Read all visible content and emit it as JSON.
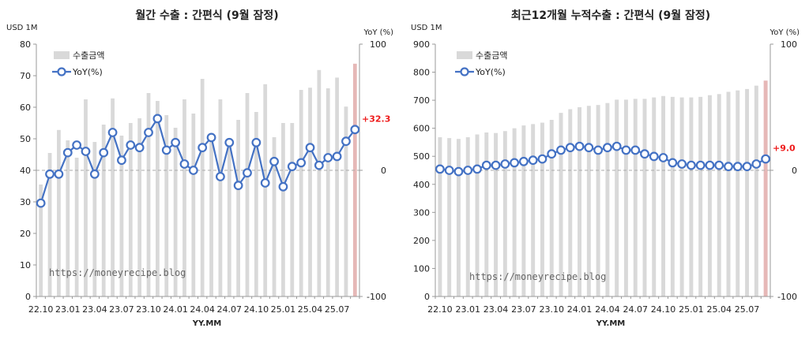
{
  "chart_data": [
    {
      "type": "bar+line",
      "title": "월간 수출 : 간편식 (9월 잠정)",
      "left_unit": "USD 1M",
      "right_unit": "YoY (%)",
      "xlabel": "YY.MM",
      "ylim": [
        0,
        80
      ],
      "yticks": [
        0,
        10,
        20,
        30,
        40,
        50,
        60,
        70,
        80
      ],
      "y2lim": [
        -100,
        100
      ],
      "y2ticks": [
        -100,
        0,
        100
      ],
      "xtick_labels": [
        "22.10",
        "23.01",
        "23.04",
        "23.07",
        "23.10",
        "24.01",
        "24.04",
        "24.07",
        "24.10",
        "25.01",
        "25.04",
        "25.07"
      ],
      "xtick_start": 0,
      "xtick_step": 3,
      "categories": [
        "22.10",
        "22.11",
        "22.12",
        "23.01",
        "23.02",
        "23.03",
        "23.04",
        "23.05",
        "23.06",
        "23.07",
        "23.08",
        "23.09",
        "23.10",
        "23.11",
        "23.12",
        "24.01",
        "24.02",
        "24.03",
        "24.04",
        "24.05",
        "24.06",
        "24.07",
        "24.08",
        "24.09",
        "24.10",
        "24.11",
        "24.12",
        "25.01",
        "25.02",
        "25.03",
        "25.04",
        "25.05",
        "25.06",
        "25.07",
        "25.08",
        "25.09"
      ],
      "series": [
        {
          "name": "수출금액",
          "axis": "left",
          "kind": "bar",
          "values": [
            35.5,
            45.5,
            52.8,
            49.5,
            44,
            62.5,
            49,
            54.5,
            62.8,
            51,
            55,
            56.5,
            64.5,
            62,
            57.5,
            53.5,
            62.5,
            58,
            69,
            50,
            62.5,
            48.5,
            56,
            64.5,
            58.5,
            67.3,
            50.5,
            55,
            55,
            65.5,
            66.2,
            71.8,
            66,
            69.4,
            60.2,
            73.8
          ]
        },
        {
          "name": "YoY(%)",
          "axis": "right",
          "kind": "line",
          "values": [
            -26,
            -3,
            -3,
            14,
            20,
            15,
            -3,
            14,
            30,
            8,
            20,
            18,
            30,
            41,
            16,
            22,
            5,
            0,
            18,
            26,
            -5,
            22,
            -12,
            -2,
            22,
            -10,
            7,
            -13,
            3,
            6,
            18,
            4,
            10,
            11,
            23,
            32.3
          ]
        }
      ],
      "highlight_index": 35,
      "annotation": "+32.3",
      "legend": [
        "수출금액",
        "YoY(%)"
      ],
      "watermark": "https://moneyrecipe.blog"
    },
    {
      "type": "bar+line",
      "title": "최근12개월 누적수출 : 간편식 (9월 잠정)",
      "left_unit": "USD 1M",
      "right_unit": "YoY (%)",
      "xlabel": "YY.MM",
      "ylim": [
        0,
        900
      ],
      "yticks": [
        0,
        100,
        200,
        300,
        400,
        500,
        600,
        700,
        800,
        900
      ],
      "y2lim": [
        -100,
        100
      ],
      "y2ticks": [
        -100,
        0,
        100
      ],
      "xtick_labels": [
        "22.10",
        "23.01",
        "23.04",
        "23.07",
        "23.10",
        "24.01",
        "24.04",
        "24.07",
        "24.10",
        "25.01",
        "25.04",
        "25.07"
      ],
      "xtick_start": 0,
      "xtick_step": 3,
      "categories": [
        "22.10",
        "22.11",
        "22.12",
        "23.01",
        "23.02",
        "23.03",
        "23.04",
        "23.05",
        "23.06",
        "23.07",
        "23.08",
        "23.09",
        "23.10",
        "23.11",
        "23.12",
        "24.01",
        "24.02",
        "24.03",
        "24.04",
        "24.05",
        "24.06",
        "24.07",
        "24.08",
        "24.09",
        "24.10",
        "24.11",
        "24.12",
        "25.01",
        "25.02",
        "25.03",
        "25.04",
        "25.05",
        "25.06",
        "25.07",
        "25.08",
        "25.09"
      ],
      "series": [
        {
          "name": "수출금액",
          "axis": "left",
          "kind": "bar",
          "values": [
            568,
            565,
            562,
            568,
            578,
            585,
            583,
            590,
            600,
            610,
            615,
            620,
            630,
            655,
            668,
            675,
            680,
            683,
            690,
            702,
            702,
            705,
            705,
            710,
            715,
            712,
            710,
            710,
            712,
            718,
            722,
            730,
            735,
            740,
            752,
            770
          ]
        },
        {
          "name": "YoY(%)",
          "axis": "right",
          "kind": "line",
          "values": [
            1,
            0,
            -1,
            0,
            1,
            4,
            4,
            5,
            6,
            7,
            8,
            9,
            13,
            16,
            18,
            19,
            18,
            16,
            18,
            19,
            16,
            16,
            13,
            11,
            10,
            6,
            5,
            4,
            4,
            4,
            4,
            3,
            3,
            3,
            5,
            9.0
          ]
        }
      ],
      "highlight_index": 35,
      "annotation": "+9.0",
      "legend": [
        "수출금액",
        "YoY(%)"
      ],
      "watermark": "https://moneyrecipe.blog"
    }
  ],
  "colors": {
    "bar": "#d9d9d9",
    "bar_highlight": "#e6b8b7",
    "line": "#4472c4",
    "marker_fill": "#ffffff",
    "annotation": "#ee1c1c",
    "zero_line": "#aaaaaa",
    "axis": "#999999"
  }
}
